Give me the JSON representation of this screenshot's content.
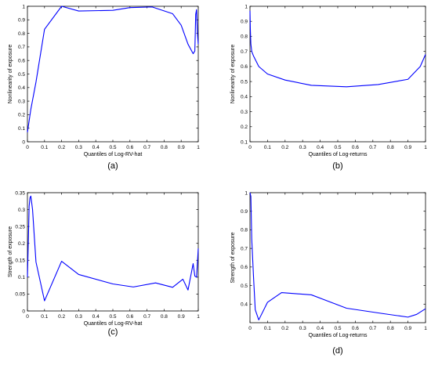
{
  "chart_data": [
    {
      "id": "a",
      "type": "line",
      "panel_label": "(a)",
      "xlabel": "Quantiles of Log-RV-hat",
      "ylabel": "Nonlinearity of exposure",
      "xlim": [
        0,
        1
      ],
      "ylim": [
        0,
        1
      ],
      "xticks": [
        "0",
        "0.1",
        "0.2",
        "0.3",
        "0.4",
        "0.5",
        "0.6",
        "0.7",
        "0.8",
        "0.9",
        "1"
      ],
      "yticks": [
        "0",
        "0.1",
        "0.2",
        "0.3",
        "0.4",
        "0.5",
        "0.6",
        "0.7",
        "0.8",
        "0.9",
        "1"
      ],
      "grid": false,
      "line_color": "#0000ff",
      "series": [
        {
          "x": [
            0,
            0.02,
            0.05,
            0.1,
            0.2,
            0.3,
            0.5,
            0.6,
            0.73,
            0.85,
            0.9,
            0.94,
            0.97,
            0.98,
            0.985,
            0.99,
            0.995,
            1.0
          ],
          "y": [
            0.07,
            0.24,
            0.44,
            0.83,
            1.0,
            0.965,
            0.97,
            0.99,
            0.995,
            0.945,
            0.86,
            0.72,
            0.65,
            0.67,
            0.94,
            0.975,
            0.8,
            0.72
          ]
        }
      ]
    },
    {
      "id": "b",
      "type": "line",
      "panel_label": "(b)",
      "xlabel": "Quantiles of Log-returns",
      "ylabel": "Nonlinearity of exposure",
      "xlim": [
        0,
        1
      ],
      "ylim": [
        0.1,
        1
      ],
      "xticks": [
        "0",
        "0.1",
        "0.2",
        "0.3",
        "0.4",
        "0.5",
        "0.6",
        "0.7",
        "0.8",
        "0.9",
        "1"
      ],
      "yticks": [
        "0.1",
        "0.2",
        "0.3",
        "0.4",
        "0.5",
        "0.6",
        "0.7",
        "0.8",
        "0.9",
        "1"
      ],
      "grid": false,
      "line_color": "#0000ff",
      "series": [
        {
          "x": [
            0,
            0.002,
            0.005,
            0.01,
            0.02,
            0.05,
            0.1,
            0.2,
            0.35,
            0.55,
            0.73,
            0.9,
            0.97,
            1.0
          ],
          "y": [
            0.97,
            0.85,
            0.75,
            0.7,
            0.67,
            0.6,
            0.55,
            0.51,
            0.475,
            0.465,
            0.48,
            0.515,
            0.6,
            0.68
          ]
        }
      ]
    },
    {
      "id": "c",
      "type": "line",
      "panel_label": "(c)",
      "xlabel": "Quantiles of Log-RV-hat",
      "ylabel": "Strength of exposure",
      "xlim": [
        0,
        1
      ],
      "ylim": [
        0,
        0.35
      ],
      "xticks": [
        "0",
        "0.1",
        "0.2",
        "0.3",
        "0.4",
        "0.5",
        "0.6",
        "0.7",
        "0.8",
        "0.9",
        "1"
      ],
      "yticks": [
        "0",
        "0.05",
        "0.1",
        "0.15",
        "0.2",
        "0.25",
        "0.3",
        "0.35"
      ],
      "grid": false,
      "line_color": "#0000ff",
      "series": [
        {
          "x": [
            0,
            0.005,
            0.01,
            0.015,
            0.02,
            0.03,
            0.05,
            0.1,
            0.2,
            0.3,
            0.5,
            0.62,
            0.75,
            0.85,
            0.91,
            0.94,
            0.97,
            0.98,
            0.99,
            1.0
          ],
          "y": [
            0.1,
            0.2,
            0.31,
            0.335,
            0.34,
            0.3,
            0.145,
            0.03,
            0.147,
            0.108,
            0.08,
            0.071,
            0.083,
            0.07,
            0.094,
            0.062,
            0.14,
            0.103,
            0.1,
            0.185
          ]
        }
      ]
    },
    {
      "id": "d",
      "type": "line",
      "panel_label": "(d)",
      "xlabel": "Quantiles of Log-returns",
      "ylabel": "Strength of exposure",
      "xlim": [
        0,
        1
      ],
      "ylim": [
        0.3,
        1
      ],
      "xticks": [
        "0",
        "0.1",
        "0.2",
        "0.3",
        "0.4",
        "0.5",
        "0.6",
        "0.7",
        "0.8",
        "0.9",
        "1"
      ],
      "yticks": [
        "0.4",
        "0.5",
        "0.6",
        "0.7",
        "0.8",
        "0.9",
        "1"
      ],
      "grid": false,
      "line_color": "#0000ff",
      "series": [
        {
          "x": [
            0,
            0.005,
            0.01,
            0.02,
            0.03,
            0.05,
            0.1,
            0.18,
            0.35,
            0.55,
            0.75,
            0.9,
            0.95,
            1.0
          ],
          "y": [
            1.0,
            0.98,
            0.75,
            0.55,
            0.37,
            0.315,
            0.41,
            0.462,
            0.45,
            0.378,
            0.35,
            0.33,
            0.345,
            0.375
          ]
        }
      ]
    }
  ]
}
